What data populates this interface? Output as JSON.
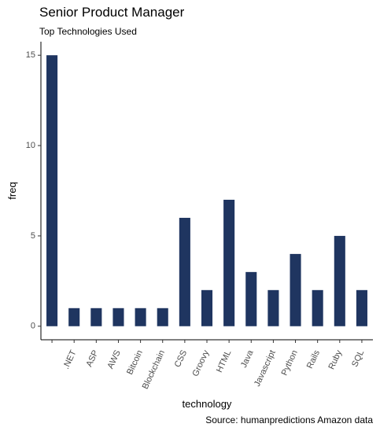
{
  "chart_data": {
    "type": "bar",
    "title": "Senior Product Manager",
    "subtitle": "Top Technologies Used",
    "caption": "Source: humanpredictions Amazon data",
    "xlabel": "technology",
    "ylabel": "freq",
    "categories": [
      "",
      ".NET",
      "ASP",
      "AWS",
      "Bitcoin",
      "Blockchain",
      "CSS",
      "Groovy",
      "HTML",
      "Java",
      "Javascript",
      "Python",
      "Rails",
      "Ruby",
      "SQL"
    ],
    "values": [
      15,
      1,
      1,
      1,
      1,
      1,
      6,
      2,
      7,
      3,
      2,
      4,
      2,
      5,
      2
    ],
    "yticks": [
      0,
      5,
      10,
      15
    ],
    "ylim": [
      -0.75,
      15.75
    ],
    "bar_color": "#1f3560",
    "grid": false,
    "legend": "none"
  }
}
